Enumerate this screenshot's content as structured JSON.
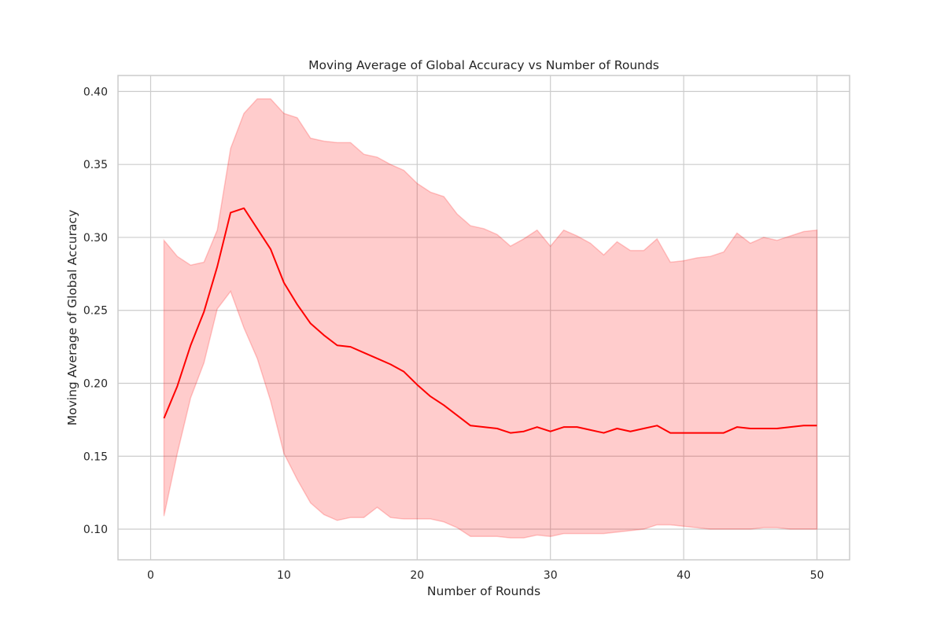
{
  "chart_data": {
    "type": "line",
    "title": "Moving Average of Global Accuracy vs Number of Rounds",
    "xlabel": "Number of Rounds",
    "ylabel": "Moving Average of Global Accuracy",
    "xlim": [
      -2.45,
      52.45
    ],
    "ylim": [
      0.079,
      0.411
    ],
    "xticks": [
      0,
      10,
      20,
      30,
      40,
      50
    ],
    "yticks": [
      0.1,
      0.15,
      0.2,
      0.25,
      0.3,
      0.35,
      0.4
    ],
    "xtick_labels": [
      "0",
      "10",
      "20",
      "30",
      "40",
      "50"
    ],
    "ytick_labels": [
      "0.10",
      "0.15",
      "0.20",
      "0.25",
      "0.30",
      "0.35",
      "0.40"
    ],
    "grid": true,
    "legend": "none",
    "colors": {
      "line": "#ff0000",
      "band": "#ff0000",
      "grid": "#cccccc",
      "frame": "#cccccc"
    },
    "x": [
      1,
      2,
      3,
      4,
      5,
      6,
      7,
      8,
      9,
      10,
      11,
      12,
      13,
      14,
      15,
      16,
      17,
      18,
      19,
      20,
      21,
      22,
      23,
      24,
      25,
      26,
      27,
      28,
      29,
      30,
      31,
      32,
      33,
      34,
      35,
      36,
      37,
      38,
      39,
      40,
      41,
      42,
      43,
      44,
      45,
      46,
      47,
      48,
      49,
      50
    ],
    "series": [
      {
        "mean": [
          0.176,
          0.198,
          0.226,
          0.249,
          0.28,
          0.317,
          0.32,
          0.306,
          0.292,
          0.269,
          0.254,
          0.241,
          0.233,
          0.226,
          0.225,
          0.221,
          0.217,
          0.213,
          0.208,
          0.199,
          0.191,
          0.185,
          0.178,
          0.171,
          0.17,
          0.169,
          0.166,
          0.167,
          0.17,
          0.167,
          0.17,
          0.17,
          0.168,
          0.166,
          0.169,
          0.167,
          0.169,
          0.171,
          0.166,
          0.166,
          0.166,
          0.166,
          0.166,
          0.17,
          0.169,
          0.169,
          0.169,
          0.17,
          0.171,
          0.171
        ],
        "upper": [
          0.298,
          0.287,
          0.281,
          0.283,
          0.305,
          0.361,
          0.385,
          0.395,
          0.395,
          0.385,
          0.382,
          0.368,
          0.366,
          0.365,
          0.365,
          0.357,
          0.355,
          0.35,
          0.346,
          0.337,
          0.331,
          0.328,
          0.316,
          0.308,
          0.306,
          0.302,
          0.294,
          0.299,
          0.305,
          0.294,
          0.305,
          0.301,
          0.296,
          0.288,
          0.297,
          0.291,
          0.291,
          0.299,
          0.283,
          0.284,
          0.286,
          0.287,
          0.29,
          0.303,
          0.296,
          0.3,
          0.298,
          0.301,
          0.304,
          0.305
        ],
        "lower": [
          0.109,
          0.152,
          0.19,
          0.214,
          0.251,
          0.263,
          0.238,
          0.217,
          0.188,
          0.152,
          0.134,
          0.118,
          0.11,
          0.106,
          0.108,
          0.108,
          0.115,
          0.108,
          0.107,
          0.107,
          0.107,
          0.105,
          0.101,
          0.095,
          0.095,
          0.095,
          0.094,
          0.094,
          0.096,
          0.095,
          0.097,
          0.097,
          0.097,
          0.097,
          0.098,
          0.099,
          0.1,
          0.103,
          0.103,
          0.102,
          0.101,
          0.1,
          0.1,
          0.1,
          0.1,
          0.101,
          0.101,
          0.1,
          0.1,
          0.1
        ]
      }
    ]
  }
}
